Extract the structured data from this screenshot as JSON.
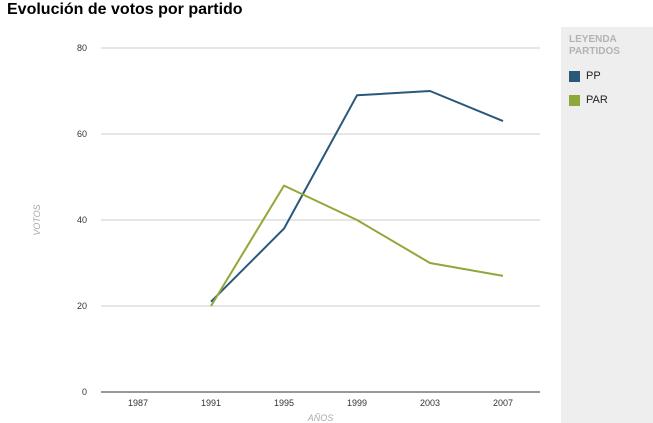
{
  "chart_data": {
    "type": "line",
    "title": "Evolución de votos por partido",
    "xlabel": "AÑOS",
    "ylabel": "VOTOS",
    "categories": [
      "1987",
      "1991",
      "1995",
      "1999",
      "2003",
      "2007"
    ],
    "ylim": [
      0,
      80
    ],
    "yticks": [
      0,
      20,
      40,
      60,
      80
    ],
    "grid": true,
    "legend_placement": "right",
    "legend_title": "LEYENDA PARTIDOS",
    "series": [
      {
        "name": "PP",
        "color": "#2a587a",
        "values": [
          null,
          21,
          38,
          69,
          70,
          63
        ]
      },
      {
        "name": "PAR",
        "color": "#8fa83a",
        "values": [
          null,
          20,
          48,
          40,
          30,
          27
        ]
      }
    ]
  }
}
